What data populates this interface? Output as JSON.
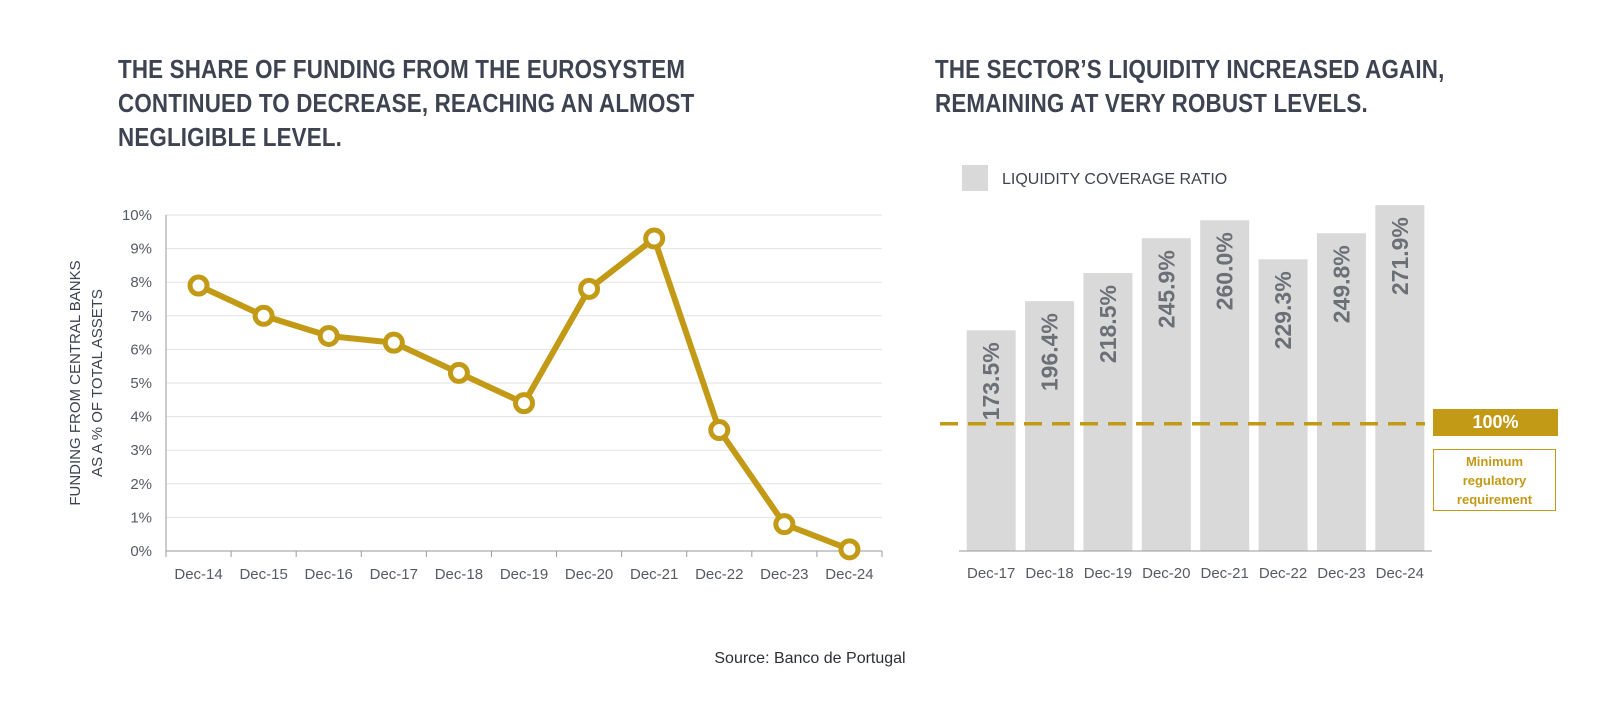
{
  "left_panel": {
    "title": "THE SHARE OF FUNDING FROM THE EUROSYSTEM\nCONTINUED TO DECREASE, REACHING AN ALMOST\nNEGLIGIBLE LEVEL."
  },
  "right_panel": {
    "title": "THE SECTOR’S LIQUIDITY INCREASED AGAIN,\nREMAINING AT VERY ROBUST LEVELS.",
    "reference": {
      "label": "100%",
      "note": "Minimum\nregulatory\nrequirement"
    }
  },
  "source": "Source: Banco de Portugal",
  "colors": {
    "line": "#c29a16",
    "bar": "#d9d9d9",
    "reference": "#c29a16",
    "text": "#3d4350"
  },
  "chart_data": [
    {
      "type": "line",
      "title": "THE SHARE OF FUNDING FROM THE EUROSYSTEM CONTINUED TO DECREASE, REACHING AN ALMOST NEGLIGIBLE LEVEL.",
      "categories": [
        "Dec-14",
        "Dec-15",
        "Dec-16",
        "Dec-17",
        "Dec-18",
        "Dec-19",
        "Dec-20",
        "Dec-21",
        "Dec-22",
        "Dec-23",
        "Dec-24"
      ],
      "series": [
        {
          "values": [
            7.9,
            7.0,
            6.4,
            6.2,
            5.3,
            4.4,
            7.8,
            9.3,
            3.6,
            0.8,
            0.05
          ]
        }
      ],
      "ylabel": [
        "FUNDING FROM CENTRAL BANKS",
        "AS A % OF TOTAL ASSETS"
      ],
      "yticks": [
        "0%",
        "1%",
        "2%",
        "3%",
        "4%",
        "5%",
        "6%",
        "7%",
        "8%",
        "9%",
        "10%"
      ],
      "ylim": [
        0,
        10
      ],
      "grid": true
    },
    {
      "type": "bar",
      "title": "THE SECTOR’S LIQUIDITY INCREASED AGAIN, REMAINING AT VERY ROBUST LEVELS.",
      "categories": [
        "Dec-17",
        "Dec-18",
        "Dec-19",
        "Dec-20",
        "Dec-21",
        "Dec-22",
        "Dec-23",
        "Dec-24"
      ],
      "series": [
        {
          "name": "LIQUIDITY COVERAGE RATIO",
          "values": [
            173.5,
            196.4,
            218.5,
            245.9,
            260.0,
            229.3,
            249.8,
            271.9
          ],
          "labels": [
            "173.5%",
            "196.4%",
            "218.5%",
            "245.9%",
            "260.0%",
            "229.3%",
            "249.8%",
            "271.9%"
          ]
        }
      ],
      "ylim": [
        0,
        272
      ],
      "reference_line": 100,
      "legend": "top-left",
      "grid": false
    }
  ]
}
